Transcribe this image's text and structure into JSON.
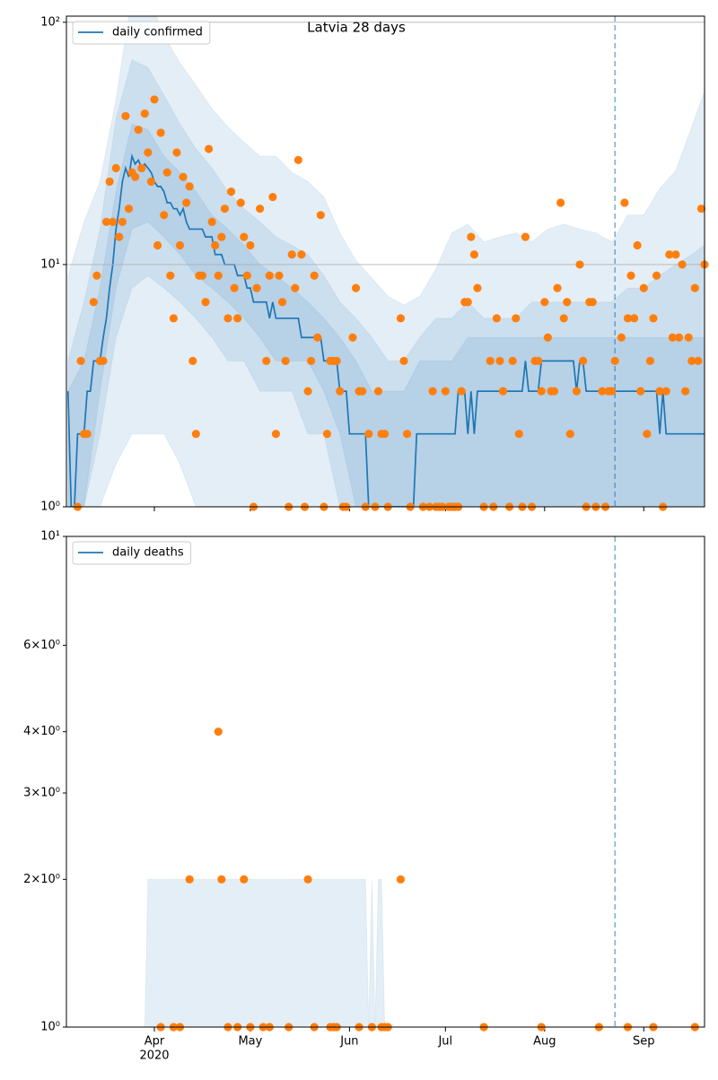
{
  "chart_data": [
    {
      "type": "line",
      "title": "Latvia 28 days",
      "xlim": [
        64.5,
        264
      ],
      "ylim": [
        1,
        106
      ],
      "log_y": true,
      "grid": true,
      "legend_loc": "upper left",
      "yticks": [
        {
          "value": 1,
          "label": "10⁰"
        },
        {
          "value": 10,
          "label": "10¹"
        },
        {
          "value": 100,
          "label": "10²"
        }
      ],
      "vline": 236,
      "line": {
        "name": "daily confirmed",
        "color": "#1f77b4",
        "x": [
          65,
          66,
          67,
          68,
          70,
          71,
          72,
          73,
          75,
          76,
          77,
          78,
          79,
          80,
          81,
          82,
          83,
          84,
          85,
          86,
          87,
          88,
          89,
          90,
          91,
          92,
          93,
          94,
          95,
          96,
          97,
          98,
          99,
          100,
          101,
          102,
          103,
          107,
          108,
          110,
          111,
          113,
          114,
          117,
          118,
          120,
          121,
          122,
          123,
          127,
          128,
          129,
          130,
          137,
          138,
          144,
          145,
          149,
          150,
          152,
          153,
          158,
          159,
          173,
          174,
          186,
          187,
          189,
          190,
          191,
          192,
          193,
          207,
          208,
          209,
          212,
          213,
          223,
          224,
          225,
          226,
          227,
          249,
          250,
          251,
          252,
          264
        ],
        "values": [
          3,
          1,
          1,
          2,
          2,
          3,
          3,
          4,
          4,
          5,
          6,
          8,
          10,
          14,
          17,
          22,
          25,
          23,
          28,
          26,
          27,
          25,
          26,
          25,
          24,
          22,
          21,
          21,
          20,
          18,
          18,
          17,
          17,
          16,
          17,
          15,
          14,
          14,
          13,
          13,
          11,
          11,
          10,
          10,
          9,
          9,
          8,
          8,
          7,
          7,
          6,
          7,
          6,
          6,
          5,
          5,
          4,
          4,
          3,
          3,
          2,
          2,
          1,
          1,
          2,
          2,
          3,
          3,
          2,
          3,
          2,
          3,
          3,
          4,
          3,
          3,
          4,
          4,
          3,
          4,
          4,
          3,
          3,
          2,
          3,
          2,
          2
        ]
      },
      "bands": {
        "color": "#1f77b4",
        "x": [
          65,
          70,
          75,
          80,
          85,
          90,
          95,
          100,
          105,
          110,
          115,
          120,
          125,
          130,
          135,
          140,
          145,
          150,
          155,
          160,
          165,
          170,
          175,
          180,
          185,
          190,
          195,
          200,
          205,
          210,
          215,
          220,
          225,
          230,
          235,
          240,
          245,
          250,
          255,
          260,
          264
        ],
        "ranges": [
          {
            "upper": [
              9,
              15,
              22,
              48,
              130,
              130,
              88,
              68,
              55,
              44,
              37,
              32,
              28,
              28,
              24,
              22,
              19,
              13.5,
              10.4,
              8.8,
              7.4,
              6.8,
              7.4,
              9.6,
              13.5,
              14.7,
              12.4,
              13,
              13.5,
              12.4,
              14,
              14.7,
              14,
              13.5,
              12.4,
              16,
              16,
              20.6,
              24.4,
              37,
              52
            ],
            "lower": [
              1,
              1,
              1,
              1.5,
              2,
              2,
              2,
              1.5,
              1,
              1,
              1,
              1,
              1,
              1,
              1,
              1,
              1,
              1,
              1,
              1,
              1,
              1,
              1,
              1,
              1,
              1,
              1,
              1,
              1,
              1,
              1,
              1,
              1,
              1,
              1,
              1,
              1,
              1,
              1,
              1,
              1
            ]
          },
          {
            "upper": [
              4,
              7,
              14,
              40,
              70,
              65,
              50,
              38,
              30,
              25,
              20,
              17,
              15,
              13,
              12,
              11,
              9,
              7,
              6,
              5,
              4,
              4,
              5,
              6,
              6,
              7,
              6,
              6,
              6,
              7,
              7,
              7,
              7,
              7,
              7,
              8,
              8,
              9,
              10,
              11,
              12
            ],
            "lower": [
              1,
              1,
              2,
              5,
              8,
              9,
              8,
              7,
              6,
              5,
              4,
              4,
              3,
              3,
              3,
              2,
              2,
              1,
              1,
              1,
              1,
              1,
              1,
              1,
              1,
              1,
              1,
              1,
              1,
              1,
              1,
              1,
              1,
              1,
              1,
              1,
              1,
              1,
              1,
              1,
              1
            ]
          },
          {
            "upper": [
              3,
              4,
              8,
              20,
              38,
              36,
              28,
              24,
              20,
              16,
              14,
              12,
              10,
              9,
              8,
              7,
              6,
              5,
              4,
              3,
              3,
              3,
              4,
              4,
              4,
              5,
              5,
              5,
              5,
              5,
              5,
              5,
              5,
              5,
              5,
              5,
              5,
              5,
              5,
              5,
              5
            ],
            "lower": [
              1,
              1,
              3,
              8,
              14,
              15,
              13,
              11,
              9,
              8,
              7,
              6,
              5,
              4,
              4,
              4,
              3,
              2,
              1,
              1,
              1,
              1,
              1,
              1,
              1,
              1,
              1,
              1,
              1,
              1,
              1,
              1,
              1,
              1,
              1,
              1,
              1,
              1,
              1,
              1,
              1
            ]
          }
        ]
      },
      "scatter": {
        "color": "#ff7f0e",
        "x": [
          68,
          69,
          70,
          71,
          73,
          74,
          75,
          76,
          77,
          78,
          79,
          80,
          81,
          82,
          83,
          84,
          85,
          86,
          87,
          88,
          89,
          90,
          91,
          92,
          93,
          94,
          95,
          96,
          97,
          98,
          99,
          100,
          101,
          102,
          103,
          104,
          105,
          106,
          107,
          108,
          109,
          110,
          111,
          112,
          113,
          114,
          115,
          116,
          117,
          118,
          119,
          120,
          121,
          122,
          123,
          124,
          125,
          127,
          128,
          129,
          130,
          131,
          132,
          133,
          134,
          135,
          136,
          137,
          138,
          139,
          140,
          141,
          142,
          143,
          144,
          145,
          146,
          147,
          148,
          149,
          150,
          151,
          152,
          154,
          155,
          156,
          157,
          158,
          159,
          161,
          162,
          163,
          164,
          165,
          169,
          170,
          171,
          172,
          176,
          178,
          179,
          180,
          181,
          182,
          183,
          184,
          185,
          186,
          187,
          188,
          189,
          190,
          191,
          192,
          193,
          195,
          197,
          198,
          199,
          200,
          201,
          203,
          204,
          205,
          206,
          207,
          208,
          210,
          211,
          212,
          213,
          214,
          215,
          216,
          217,
          218,
          219,
          220,
          221,
          222,
          224,
          225,
          226,
          227,
          228,
          229,
          230,
          232,
          233,
          234,
          235,
          236,
          238,
          239,
          240,
          241,
          242,
          243,
          244,
          245,
          246,
          247,
          248,
          249,
          250,
          251,
          252,
          253,
          254,
          255,
          256,
          257,
          258,
          259,
          260,
          261,
          262,
          263,
          264
        ],
        "values": [
          1,
          4,
          2,
          2,
          7,
          9,
          4,
          4,
          15,
          22,
          15,
          25,
          13,
          15,
          41,
          17,
          24,
          23,
          36,
          25,
          42,
          29,
          22,
          48,
          12,
          35,
          16,
          24,
          9,
          6,
          29,
          12,
          23,
          18,
          21,
          4,
          2,
          9,
          9,
          7,
          30,
          15,
          12,
          9,
          13,
          17,
          6,
          20,
          8,
          6,
          18,
          13,
          9,
          12,
          1,
          8,
          17,
          4,
          9,
          19,
          2,
          9,
          7,
          4,
          1,
          11,
          8,
          27,
          11,
          1,
          3,
          4,
          9,
          5,
          16,
          1,
          2,
          4,
          4,
          4,
          3,
          1,
          1,
          5,
          8,
          3,
          3,
          1,
          2,
          1,
          3,
          2,
          2,
          1,
          6,
          4,
          2,
          1,
          1,
          1,
          3,
          1,
          1,
          1,
          3,
          1,
          1,
          1,
          1,
          3,
          7,
          7,
          13,
          11,
          8,
          1,
          4,
          1,
          6,
          4,
          3,
          1,
          4,
          6,
          2,
          1,
          13,
          1,
          4,
          4,
          3,
          7,
          5,
          3,
          3,
          8,
          18,
          6,
          7,
          2,
          3,
          10,
          4,
          1,
          7,
          7,
          1,
          3,
          1,
          3,
          3,
          4,
          5,
          18,
          6,
          9,
          6,
          12,
          3,
          8,
          2,
          4,
          6,
          9,
          3,
          1,
          3,
          11,
          5,
          11,
          5,
          10,
          3,
          5,
          4,
          8,
          4,
          17,
          10
        ]
      }
    },
    {
      "type": "line",
      "xlim": [
        64.5,
        264
      ],
      "ylim": [
        1,
        10
      ],
      "log_y": true,
      "grid": false,
      "legend_loc": "upper left",
      "yticks": [
        {
          "value": 1,
          "label": "10⁰"
        },
        {
          "value": 2,
          "label": "2×10⁰"
        },
        {
          "value": 3,
          "label": "3×10⁰"
        },
        {
          "value": 4,
          "label": "4×10⁰"
        },
        {
          "value": 6,
          "label": "6×10⁰"
        },
        {
          "value": 10,
          "label": "10¹"
        }
      ],
      "xticks": [
        {
          "value": 92,
          "label": "Apr"
        },
        {
          "value": 122,
          "label": "May"
        },
        {
          "value": 153,
          "label": "Jun"
        },
        {
          "value": 183,
          "label": "Jul"
        },
        {
          "value": 214,
          "label": "Aug"
        },
        {
          "value": 245,
          "label": "Sep"
        }
      ],
      "xtick_year": "2020",
      "vline": 236,
      "line": {
        "name": "daily deaths",
        "color": "#1f77b4"
      },
      "bands": {
        "color": "#1f77b4",
        "x": [
          89,
          90,
          158,
          159,
          160,
          161,
          162,
          163,
          164
        ],
        "ranges": [
          {
            "upper": [
              1,
              2,
              2,
              1,
              2,
              1,
              2,
              2,
              1
            ],
            "lower": [
              1,
              1,
              1,
              1,
              1,
              1,
              1,
              1,
              1
            ]
          }
        ]
      },
      "scatter": {
        "color": "#ff7f0e",
        "x": [
          94,
          98,
          100,
          103,
          112,
          113,
          115,
          118,
          120,
          122,
          126,
          128,
          134,
          140,
          142,
          147,
          148,
          149,
          156,
          160,
          163,
          164,
          165,
          169,
          195,
          213,
          231,
          240,
          248,
          261
        ],
        "values": [
          1,
          1,
          1,
          2,
          4,
          2,
          1,
          1,
          2,
          1,
          1,
          1,
          1,
          2,
          1,
          1,
          1,
          1,
          1,
          1,
          1,
          1,
          1,
          2,
          1,
          1,
          1,
          1,
          1,
          1
        ]
      }
    }
  ]
}
